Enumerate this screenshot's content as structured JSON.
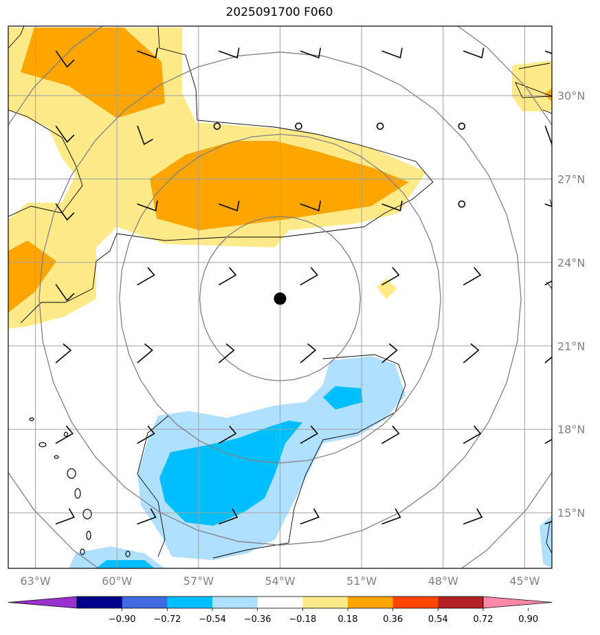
{
  "title": "2025091700 F060",
  "colors": {
    "frame": "#000000",
    "grid": "#a0a0a0",
    "range_rings": "#808080",
    "coastline": "#000000",
    "storm_center": "#000000",
    "pos_weak": "#ffea8a",
    "pos_mid": "#ffa500",
    "neg_weak": "#b0e0ff",
    "neg_mid": "#00bfff"
  },
  "map": {
    "lon_range": [
      -64,
      -44
    ],
    "lat_range": [
      13,
      32.5
    ],
    "storm_center": {
      "lon": -54.0,
      "lat": 22.7
    },
    "range_rings_deg": [
      3,
      6,
      9,
      12
    ],
    "lon_ticks": [
      {
        "value": -63,
        "label": "63°W"
      },
      {
        "value": -60,
        "label": "60°W"
      },
      {
        "value": -57,
        "label": "57°W"
      },
      {
        "value": -54,
        "label": "54°W"
      },
      {
        "value": -51,
        "label": "51°W"
      },
      {
        "value": -48,
        "label": "48°W"
      },
      {
        "value": -45,
        "label": "45°W"
      }
    ],
    "lat_ticks": [
      {
        "value": 30,
        "label": "30°N"
      },
      {
        "value": 27,
        "label": "27°N"
      },
      {
        "value": 24,
        "label": "24°N"
      },
      {
        "value": 21,
        "label": "21°N"
      },
      {
        "value": 18,
        "label": "18°N"
      },
      {
        "value": 15,
        "label": "15°N"
      }
    ],
    "gridlines": true
  },
  "colorbar": {
    "colors": [
      "#9932cc",
      "#00008b",
      "#4169e1",
      "#00bfff",
      "#b0e0ff",
      "#ffffff",
      "#ffea8a",
      "#ffa500",
      "#ff4500",
      "#b22222",
      "#ff88aa"
    ],
    "tick_values": [
      -0.9,
      -0.72,
      -0.54,
      -0.36,
      -0.18,
      0.18,
      0.36,
      0.54,
      0.72,
      0.9
    ],
    "tick_labels": [
      "−0.90",
      "−0.72",
      "−0.54",
      "−0.36",
      "−0.18",
      "0.18",
      "0.36",
      "0.54",
      "0.72",
      "0.90"
    ],
    "extend": "both"
  },
  "wind_barbs_shown": true
}
